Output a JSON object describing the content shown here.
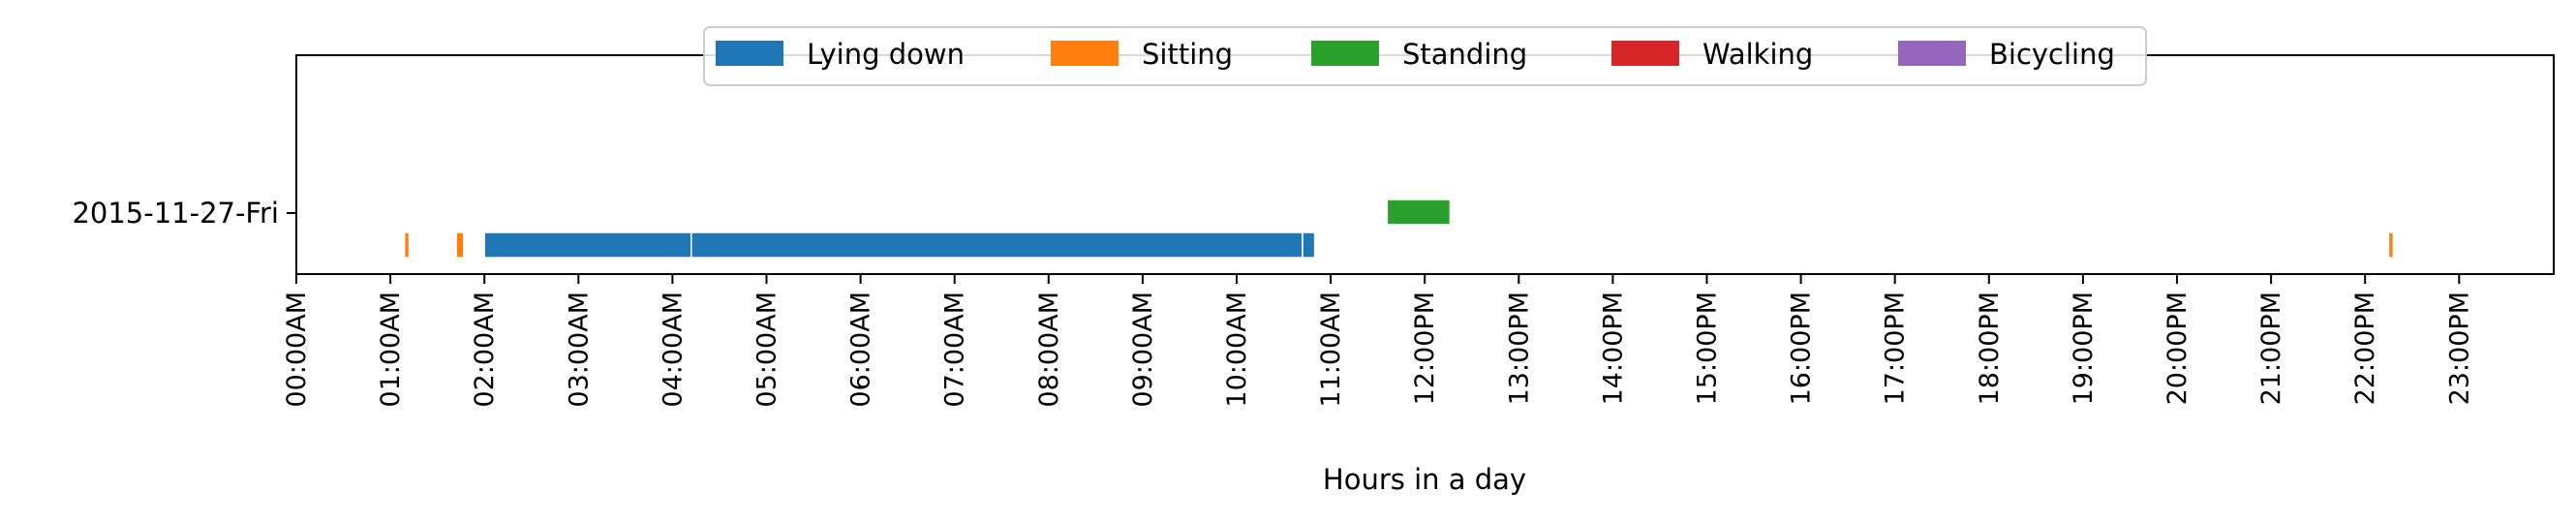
{
  "chart_data": {
    "type": "timeline",
    "xlabel": "Hours in a day",
    "xlim": [
      0,
      24
    ],
    "x_ticks": [
      {
        "value": 0,
        "label": "00:00AM"
      },
      {
        "value": 1,
        "label": "01:00AM"
      },
      {
        "value": 2,
        "label": "02:00AM"
      },
      {
        "value": 3,
        "label": "03:00AM"
      },
      {
        "value": 4,
        "label": "04:00AM"
      },
      {
        "value": 5,
        "label": "05:00AM"
      },
      {
        "value": 6,
        "label": "06:00AM"
      },
      {
        "value": 7,
        "label": "07:00AM"
      },
      {
        "value": 8,
        "label": "08:00AM"
      },
      {
        "value": 9,
        "label": "09:00AM"
      },
      {
        "value": 10,
        "label": "10:00AM"
      },
      {
        "value": 11,
        "label": "11:00AM"
      },
      {
        "value": 12,
        "label": "12:00PM"
      },
      {
        "value": 13,
        "label": "13:00PM"
      },
      {
        "value": 14,
        "label": "14:00PM"
      },
      {
        "value": 15,
        "label": "15:00PM"
      },
      {
        "value": 16,
        "label": "16:00PM"
      },
      {
        "value": 17,
        "label": "17:00PM"
      },
      {
        "value": 18,
        "label": "18:00PM"
      },
      {
        "value": 19,
        "label": "19:00PM"
      },
      {
        "value": 20,
        "label": "20:00PM"
      },
      {
        "value": 21,
        "label": "21:00PM"
      },
      {
        "value": 22,
        "label": "22:00PM"
      },
      {
        "value": 23,
        "label": "23:00PM"
      }
    ],
    "y_categories": [
      "2015-11-27-Fri"
    ],
    "legend_position": "top-center",
    "series": [
      {
        "name": "Lying down",
        "color": "#1f77b4",
        "lane": "low",
        "intervals": [
          [
            2.0,
            4.2
          ],
          [
            4.2,
            10.7
          ],
          [
            10.7,
            10.83
          ]
        ]
      },
      {
        "name": "Sitting",
        "color": "#ff7f0e",
        "lane": "low",
        "intervals": [
          [
            1.15,
            1.2
          ],
          [
            1.7,
            1.78
          ],
          [
            22.25,
            22.3
          ]
        ]
      },
      {
        "name": "Standing",
        "color": "#2ca02c",
        "lane": "high",
        "intervals": [
          [
            11.6,
            12.27
          ]
        ]
      },
      {
        "name": "Walking",
        "color": "#d62728",
        "lane": "low",
        "intervals": []
      },
      {
        "name": "Bicycling",
        "color": "#9467bd",
        "lane": "low",
        "intervals": []
      }
    ]
  }
}
